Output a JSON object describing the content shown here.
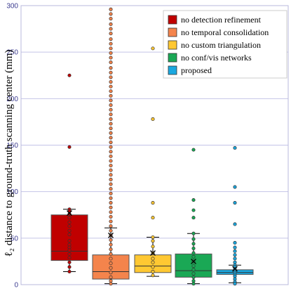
{
  "chart_data": {
    "type": "box",
    "title": "",
    "xlabel": "",
    "ylabel": "ℓ₂ distance to ground-truth scanning center (mm)",
    "ylim": [
      0,
      300
    ],
    "yticks": [
      0,
      50,
      100,
      150,
      200,
      250,
      300
    ],
    "grid": true,
    "legend_position": "top-right",
    "series": [
      {
        "name": "no detection refinement",
        "color": "#c00000",
        "q1": 26,
        "median": 36,
        "q3": 75,
        "mean": 77,
        "whisker_low": 14,
        "whisker_high": 81,
        "points": [
          225,
          148,
          81,
          79,
          76,
          72,
          67,
          63,
          58,
          54,
          47,
          43,
          40,
          37,
          33,
          29,
          24,
          19,
          14
        ]
      },
      {
        "name": "no temporal consolidation",
        "color": "#f4844c",
        "q1": 6,
        "median": 14,
        "q3": 32,
        "mean": 53,
        "whisker_low": 1,
        "whisker_high": 61,
        "points": [
          296,
          291,
          286,
          280,
          275,
          270,
          264,
          259,
          254,
          249,
          244,
          239,
          233,
          228,
          223,
          218,
          213,
          208,
          203,
          198,
          193,
          188,
          183,
          178,
          173,
          168,
          163,
          158,
          153,
          148,
          143,
          138,
          133,
          128,
          123,
          118,
          113,
          108,
          103,
          98,
          93,
          88,
          83,
          78,
          73,
          68,
          63,
          58,
          53,
          48,
          43,
          38,
          33,
          28,
          23,
          18,
          13,
          8,
          4,
          1
        ]
      },
      {
        "name": "no custom triangulation",
        "color": "#ffc832",
        "q1": 13,
        "median": 20,
        "q3": 32,
        "mean": 34,
        "whisker_low": 9,
        "whisker_high": 51,
        "points": [
          254,
          178,
          88,
          72,
          51,
          47,
          41,
          34,
          28,
          24,
          19,
          14,
          10
        ]
      },
      {
        "name": "no conf/vis networks",
        "color": "#1aa855",
        "q1": 8,
        "median": 15,
        "q3": 33,
        "mean": 25,
        "whisker_low": 1,
        "whisker_high": 55,
        "points": [
          145,
          91,
          80,
          72,
          55,
          49,
          44,
          39,
          34,
          30,
          25,
          20,
          16,
          12,
          8,
          4,
          1
        ]
      },
      {
        "name": "proposed",
        "color": "#1aa8e0",
        "q1": 11,
        "median": 13,
        "q3": 16,
        "mean": 17,
        "whisker_low": 2,
        "whisker_high": 21,
        "points": [
          147,
          105,
          88,
          65,
          45,
          40,
          36,
          32,
          28,
          24,
          21,
          19,
          17,
          15,
          13,
          11,
          9,
          6,
          3,
          1
        ]
      }
    ]
  }
}
